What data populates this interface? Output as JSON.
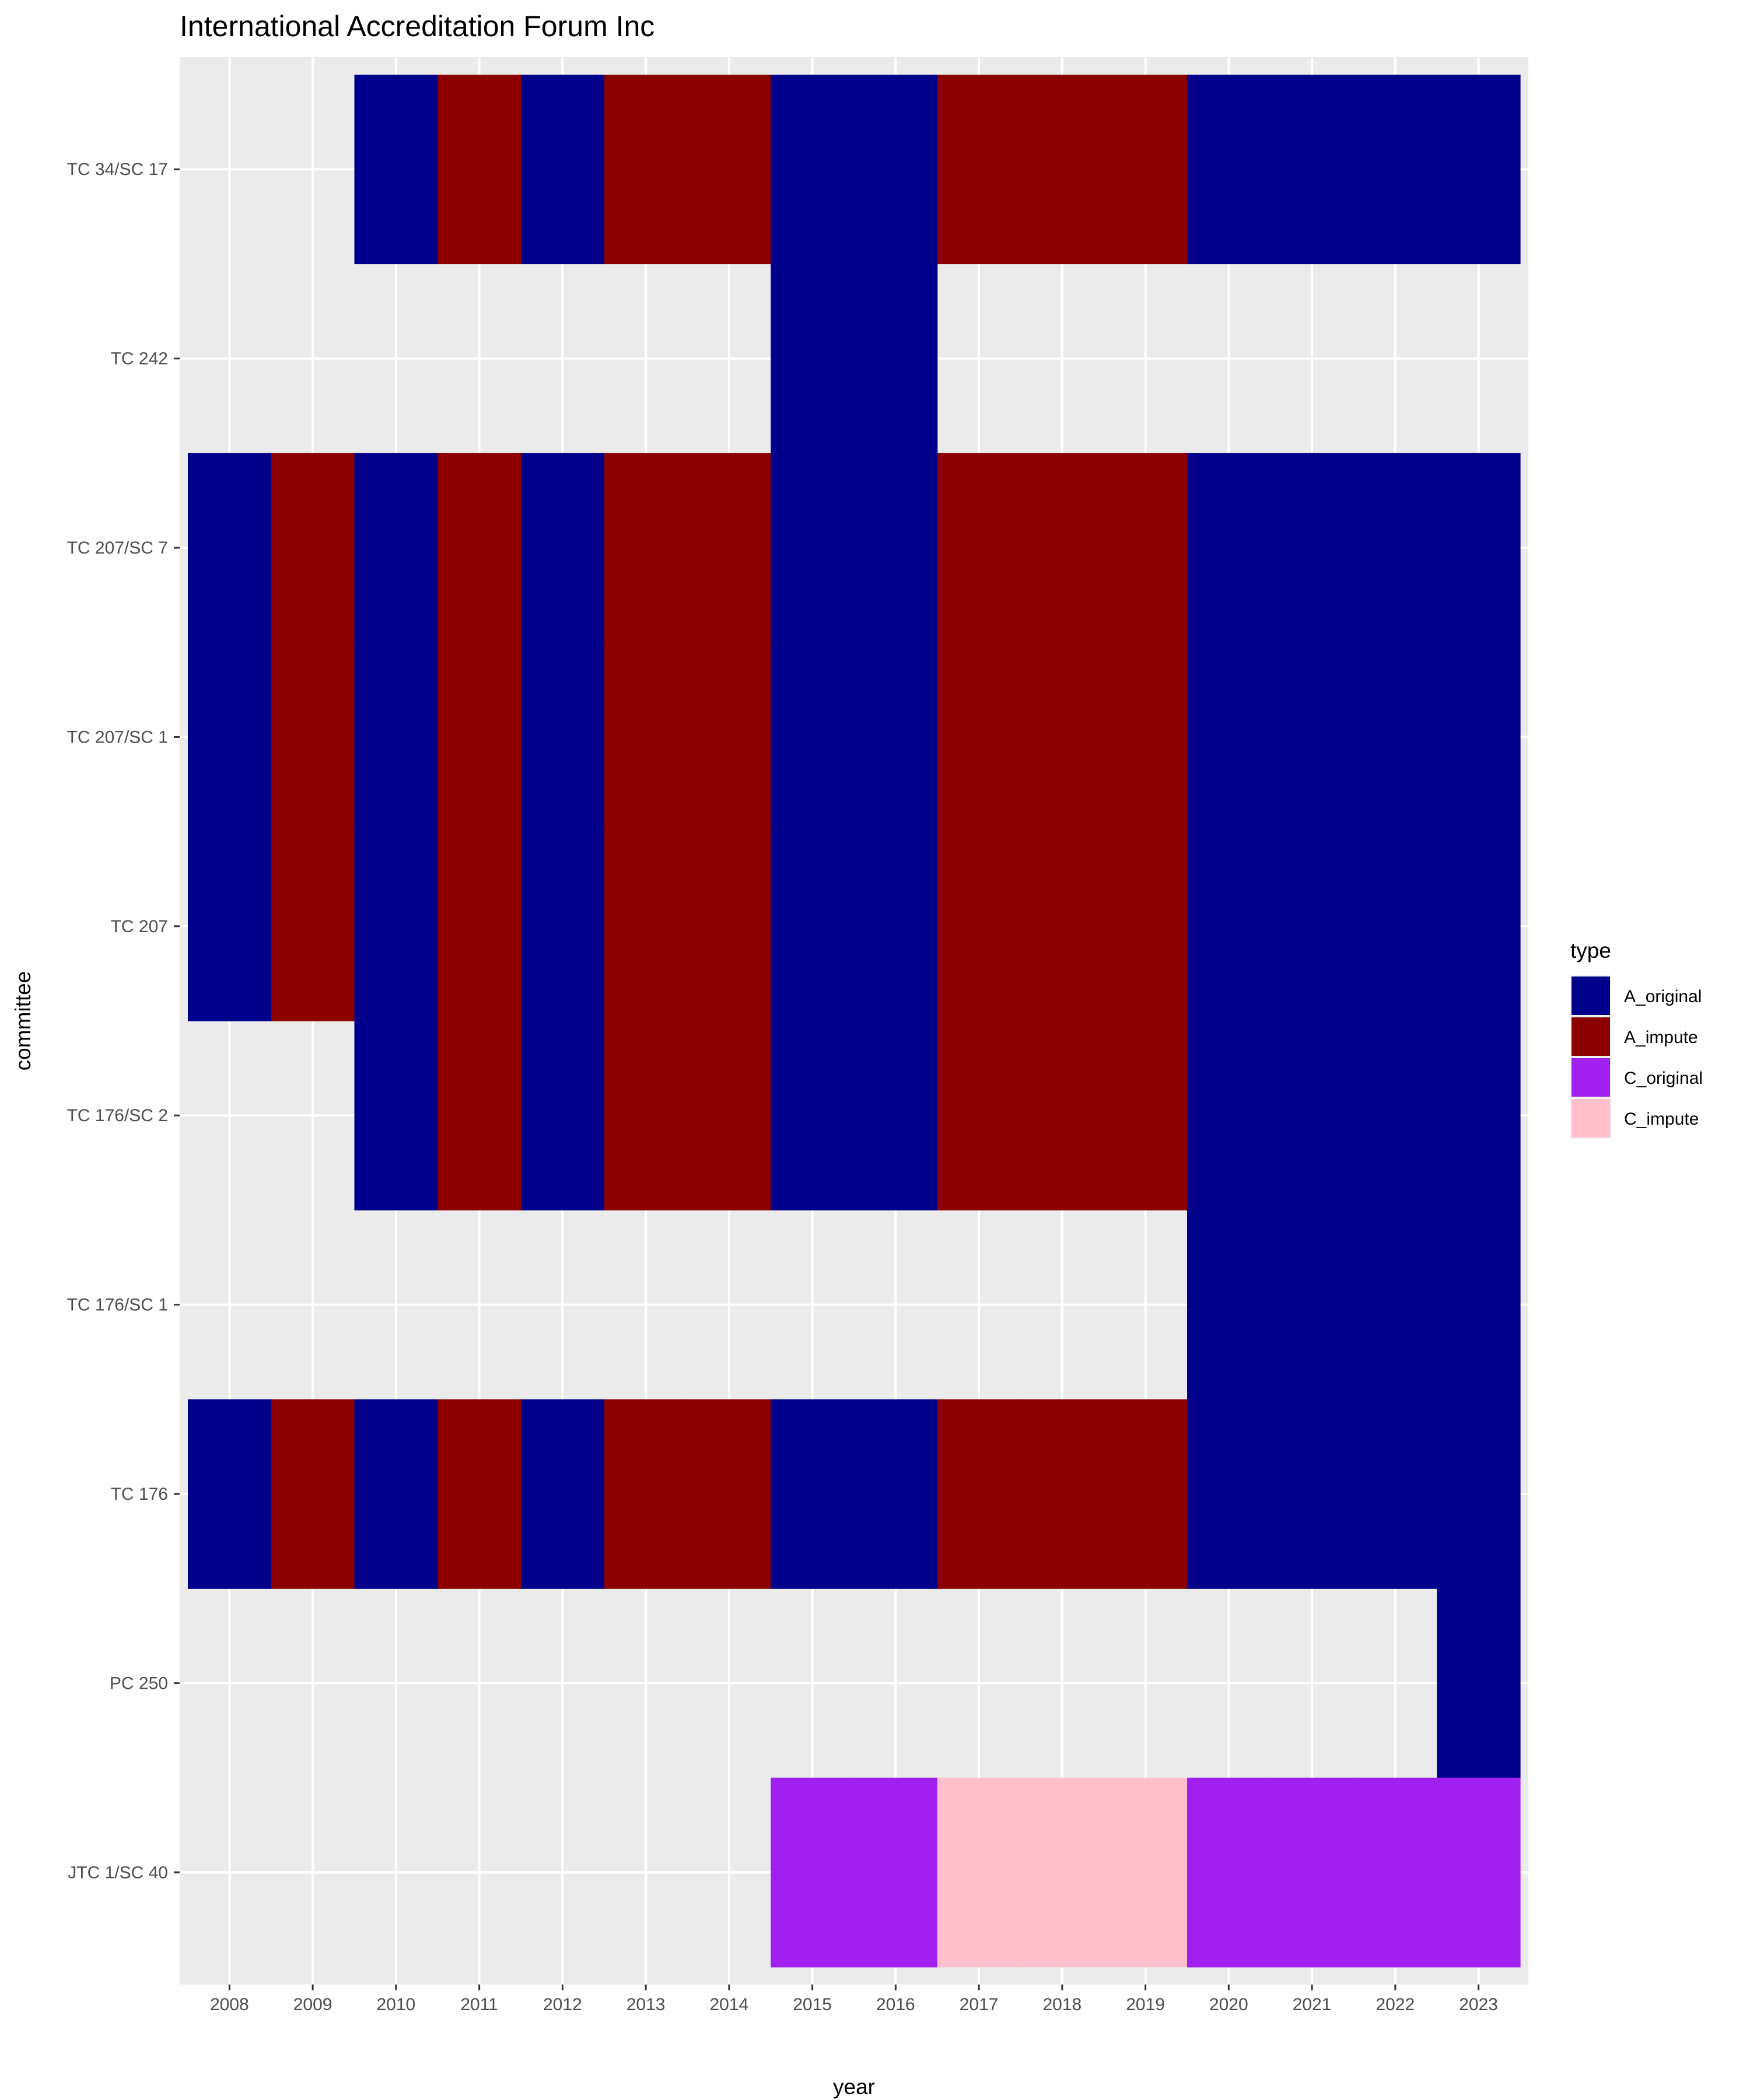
{
  "chart_data": {
    "type": "heatmap",
    "title": "International Accreditation Forum Inc",
    "xlabel": "year",
    "ylabel": "committee",
    "x_categories": [
      "2008",
      "2009",
      "2010",
      "2011",
      "2012",
      "2013",
      "2014",
      "2015",
      "2016",
      "2017",
      "2018",
      "2019",
      "2020",
      "2021",
      "2022",
      "2023"
    ],
    "y_categories": [
      "TC 34/SC 17",
      "TC 242",
      "TC 207/SC 7",
      "TC 207/SC 1",
      "TC 207",
      "TC 176/SC 2",
      "TC 176/SC 1",
      "TC 176",
      "PC 250",
      "JTC 1/SC 40"
    ],
    "legend": {
      "title": "type",
      "position": "right",
      "items": [
        {
          "name": "A_original",
          "color": "#00008b"
        },
        {
          "name": "A_impute",
          "color": "#8b0000"
        },
        {
          "name": "C_original",
          "color": "#a020f0"
        },
        {
          "name": "C_impute",
          "color": "#ffc0cb"
        }
      ]
    },
    "grid": true,
    "cells": [
      {
        "committee": "TC 34/SC 17",
        "types": {
          "2010": "A_original",
          "2011": "A_impute",
          "2012": "A_original",
          "2013": "A_impute",
          "2014": "A_impute",
          "2015": "A_original",
          "2016": "A_original",
          "2017": "A_impute",
          "2018": "A_impute",
          "2019": "A_impute",
          "2020": "A_original",
          "2021": "A_original",
          "2022": "A_original",
          "2023": "A_original"
        }
      },
      {
        "committee": "TC 242",
        "types": {
          "2015": "A_original",
          "2016": "A_original"
        }
      },
      {
        "committee": "TC 207/SC 7",
        "types": {
          "2008": "A_original",
          "2009": "A_impute",
          "2010": "A_original",
          "2011": "A_impute",
          "2012": "A_original",
          "2013": "A_impute",
          "2014": "A_impute",
          "2015": "A_original",
          "2016": "A_original",
          "2017": "A_impute",
          "2018": "A_impute",
          "2019": "A_impute",
          "2020": "A_original",
          "2021": "A_original",
          "2022": "A_original",
          "2023": "A_original"
        }
      },
      {
        "committee": "TC 207/SC 1",
        "types": {
          "2008": "A_original",
          "2009": "A_impute",
          "2010": "A_original",
          "2011": "A_impute",
          "2012": "A_original",
          "2013": "A_impute",
          "2014": "A_impute",
          "2015": "A_original",
          "2016": "A_original",
          "2017": "A_impute",
          "2018": "A_impute",
          "2019": "A_impute",
          "2020": "A_original",
          "2021": "A_original",
          "2022": "A_original",
          "2023": "A_original"
        }
      },
      {
        "committee": "TC 207",
        "types": {
          "2008": "A_original",
          "2009": "A_impute",
          "2010": "A_original",
          "2011": "A_impute",
          "2012": "A_original",
          "2013": "A_impute",
          "2014": "A_impute",
          "2015": "A_original",
          "2016": "A_original",
          "2017": "A_impute",
          "2018": "A_impute",
          "2019": "A_impute",
          "2020": "A_original",
          "2021": "A_original",
          "2022": "A_original",
          "2023": "A_original"
        }
      },
      {
        "committee": "TC 176/SC 2",
        "types": {
          "2010": "A_original",
          "2011": "A_impute",
          "2012": "A_original",
          "2013": "A_impute",
          "2014": "A_impute",
          "2015": "A_original",
          "2016": "A_original",
          "2017": "A_impute",
          "2018": "A_impute",
          "2019": "A_impute",
          "2020": "A_original",
          "2021": "A_original",
          "2022": "A_original",
          "2023": "A_original"
        }
      },
      {
        "committee": "TC 176/SC 1",
        "types": {
          "2020": "A_original",
          "2021": "A_original",
          "2022": "A_original",
          "2023": "A_original"
        }
      },
      {
        "committee": "TC 176",
        "types": {
          "2008": "A_original",
          "2009": "A_impute",
          "2010": "A_original",
          "2011": "A_impute",
          "2012": "A_original",
          "2013": "A_impute",
          "2014": "A_impute",
          "2015": "A_original",
          "2016": "A_original",
          "2017": "A_impute",
          "2018": "A_impute",
          "2019": "A_impute",
          "2020": "A_original",
          "2021": "A_original",
          "2022": "A_original",
          "2023": "A_original"
        }
      },
      {
        "committee": "PC 250",
        "types": {
          "2023": "A_original"
        }
      },
      {
        "committee": "JTC 1/SC 40",
        "types": {
          "2015": "C_original",
          "2016": "C_original",
          "2017": "C_impute",
          "2018": "C_impute",
          "2019": "C_impute",
          "2020": "C_original",
          "2021": "C_original",
          "2022": "C_original",
          "2023": "C_original"
        }
      }
    ]
  }
}
